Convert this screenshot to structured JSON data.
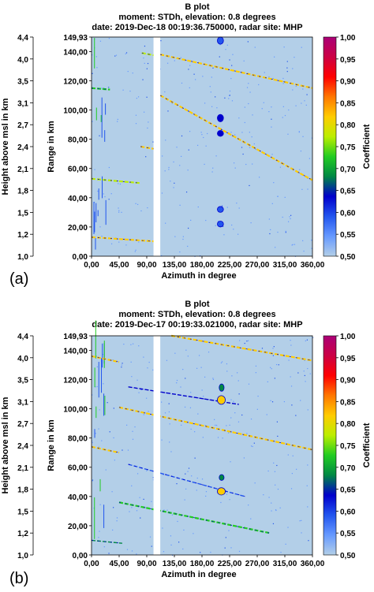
{
  "chart_data": [
    {
      "type": "heatmap",
      "panel_label": "(a)",
      "title": "B plot",
      "subtitle_1": "moment: STDh, elevation: 0.8 degrees",
      "subtitle_2": "date: 2019-Dec-18 00:19:36.750000, radar site: MHP",
      "xlabel": "Azimuth in degree",
      "ylabel": "Range in km",
      "ylabel_left": "Height above msl in km",
      "colorbar_label": "Coefficient",
      "xlim": [
        0,
        360
      ],
      "ylim": [
        0,
        149.93
      ],
      "x_ticks": [
        "0,00",
        "45,00",
        "90,00",
        "135,00",
        "180,00",
        "225,00",
        "270,00",
        "315,00",
        "360,00"
      ],
      "y_ticks": [
        "0,00",
        "20,00",
        "40,00",
        "60,00",
        "80,00",
        "100,00",
        "120,00",
        "140,00",
        "149,93"
      ],
      "height_ticks": [
        "1,0",
        "1,2",
        "1,5",
        "1,8",
        "2,1",
        "2,4",
        "2,7",
        "3,1",
        "3,5",
        "4,0",
        "4,4"
      ],
      "colorbar_ticks": [
        "0,50",
        "0,55",
        "0,60",
        "0,65",
        "0,70",
        "0,75",
        "0,80",
        "0,85",
        "0,90",
        "0,95",
        "1,00"
      ],
      "clim": [
        0.5,
        1.0
      ],
      "background_value": 0.5,
      "no_data_azimuth": [
        101,
        112
      ],
      "streaks": [
        {
          "az": [
            0,
            108
          ],
          "r": [
            13,
            10
          ],
          "value": 0.8
        },
        {
          "az": [
            112,
            360
          ],
          "r": [
            110,
            52
          ],
          "value": 0.82
        },
        {
          "az": [
            0,
            80
          ],
          "r": [
            53,
            50
          ],
          "value": 0.78
        },
        {
          "az": [
            80,
            108
          ],
          "r": [
            75,
            73
          ],
          "value": 0.8
        },
        {
          "az": [
            112,
            360
          ],
          "r": [
            138,
            115
          ],
          "value": 0.82
        },
        {
          "az": [
            82,
            108
          ],
          "r": [
            139,
            137
          ],
          "value": 0.75
        },
        {
          "az": [
            0,
            30
          ],
          "r": [
            115,
            114
          ],
          "value": 0.72
        }
      ],
      "spots": [
        {
          "az": [
            205,
            215
          ],
          "r": [
            145,
            150
          ],
          "value": 0.6
        },
        {
          "az": [
            205,
            215
          ],
          "r": [
            92,
            97
          ],
          "value": 0.62
        },
        {
          "az": [
            205,
            215
          ],
          "r": [
            82,
            86
          ],
          "value": 0.62
        },
        {
          "az": [
            205,
            215
          ],
          "r": [
            30,
            34
          ],
          "value": 0.6
        },
        {
          "az": [
            205,
            215
          ],
          "r": [
            20,
            24
          ],
          "value": 0.6
        }
      ]
    },
    {
      "type": "heatmap",
      "panel_label": "(b)",
      "title": "B plot",
      "subtitle_1": "moment: STDh, elevation: 0.8 degrees",
      "subtitle_2": "date: 2019-Dec-17 00:19:33.021000, radar site: MHP",
      "xlabel": "Azimuth in degree",
      "ylabel": "Range in km",
      "ylabel_left": "Height above msl in km",
      "colorbar_label": "Coefficient",
      "xlim": [
        0,
        360
      ],
      "ylim": [
        0,
        149.93
      ],
      "x_ticks": [
        "0,00",
        "45,00",
        "90,00",
        "135,00",
        "180,00",
        "225,00",
        "270,00",
        "315,00",
        "360,00"
      ],
      "y_ticks": [
        "0,00",
        "20,00",
        "40,00",
        "60,00",
        "80,00",
        "100,00",
        "120,00",
        "140,00",
        "149,93"
      ],
      "height_ticks": [
        "1,0",
        "1,2",
        "1,5",
        "1,8",
        "2,1",
        "2,4",
        "2,7",
        "3,1",
        "3,5",
        "4,0",
        "4,4"
      ],
      "colorbar_ticks": [
        "0,50",
        "0,55",
        "0,60",
        "0,65",
        "0,70",
        "0,75",
        "0,80",
        "0,85",
        "0,90",
        "0,95",
        "1,00"
      ],
      "clim": [
        0.5,
        1.0
      ],
      "background_value": 0.5,
      "no_data_azimuth": [
        101,
        112
      ],
      "streaks": [
        {
          "az": [
            0,
            45
          ],
          "r": [
            136,
            132
          ],
          "value": 0.8
        },
        {
          "az": [
            130,
            360
          ],
          "r": [
            150,
            133
          ],
          "value": 0.82
        },
        {
          "az": [
            45,
            360
          ],
          "r": [
            101,
            72
          ],
          "value": 0.84
        },
        {
          "az": [
            0,
            45
          ],
          "r": [
            74,
            70
          ],
          "value": 0.8
        },
        {
          "az": [
            45,
            290
          ],
          "r": [
            36,
            15
          ],
          "value": 0.72
        },
        {
          "az": [
            0,
            50
          ],
          "r": [
            10,
            8
          ],
          "value": 0.7
        },
        {
          "az": [
            60,
            240
          ],
          "r": [
            115,
            103
          ],
          "value": 0.62
        },
        {
          "az": [
            60,
            250
          ],
          "r": [
            62,
            40
          ],
          "value": 0.6
        }
      ],
      "spots": [
        {
          "az": [
            205,
            218
          ],
          "r": [
            103,
            109
          ],
          "value": 0.82
        },
        {
          "az": [
            205,
            218
          ],
          "r": [
            41,
            46
          ],
          "value": 0.8
        },
        {
          "az": [
            208,
            216
          ],
          "r": [
            112,
            117
          ],
          "value": 0.66
        },
        {
          "az": [
            208,
            216
          ],
          "r": [
            51,
            55
          ],
          "value": 0.66
        }
      ]
    }
  ],
  "colormap": [
    "#b3cfe8",
    "#6699ff",
    "#2255ee",
    "#0000cc",
    "#008844",
    "#22cc22",
    "#bbee00",
    "#ffcc00",
    "#ff7700",
    "#ff0000",
    "#cc0044",
    "#aa0077"
  ]
}
